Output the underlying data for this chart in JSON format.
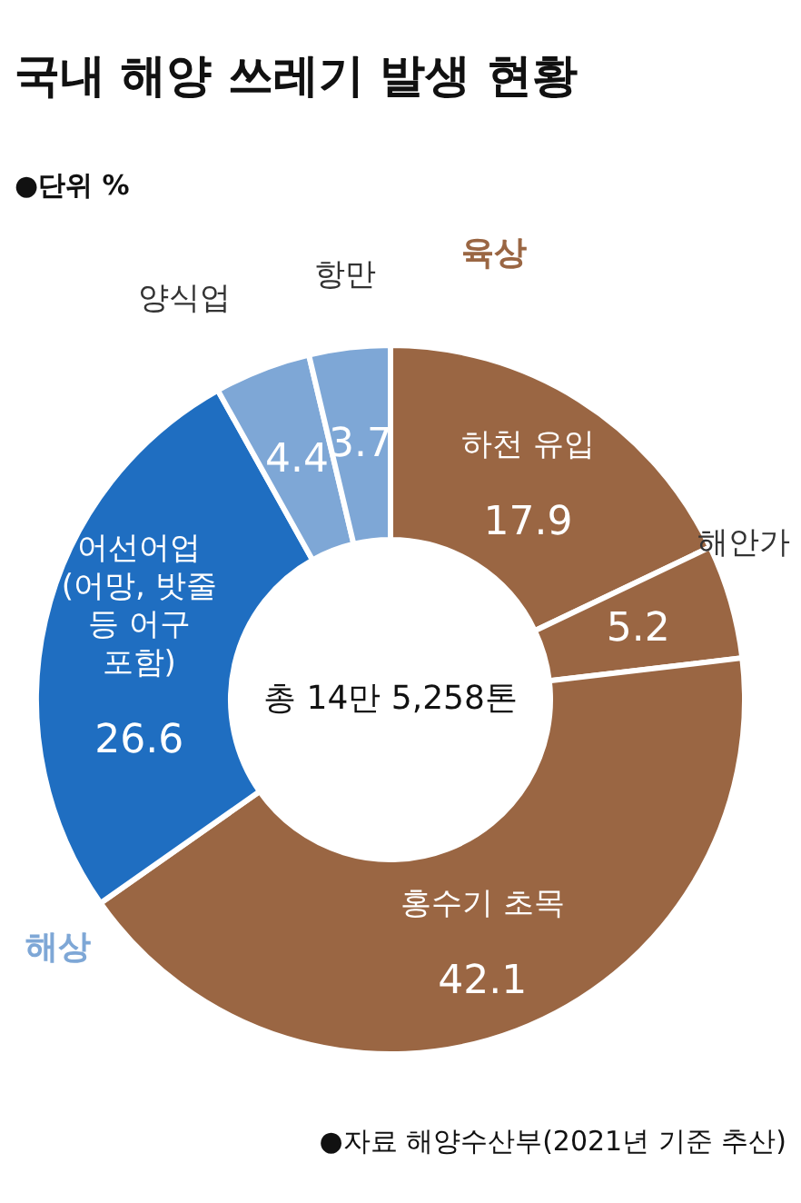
{
  "chart_data": {
    "type": "donut",
    "title": "국내 해양 쓰레기 발생 현황",
    "subtitle": "●단위 %",
    "categories": [
      "하천 유입",
      "해안가",
      "홍수기 초목",
      "어선어업\n(어망, 밧줄\n등 어구\n포함)",
      "양식업",
      "항만"
    ],
    "values": [
      17.9,
      5.2,
      42.1,
      26.6,
      4.4,
      3.7
    ],
    "colors": [
      "#9a6643",
      "#9a6643",
      "#9a6643",
      "#1f6ec1",
      "#7ea7d6",
      "#7ea7d6"
    ],
    "data_labels": true,
    "annotations": [
      "총 14만 5,258톤",
      "육상",
      "해상",
      "●자료 해양수산부(2021년 기준 추산)"
    ]
  }
}
